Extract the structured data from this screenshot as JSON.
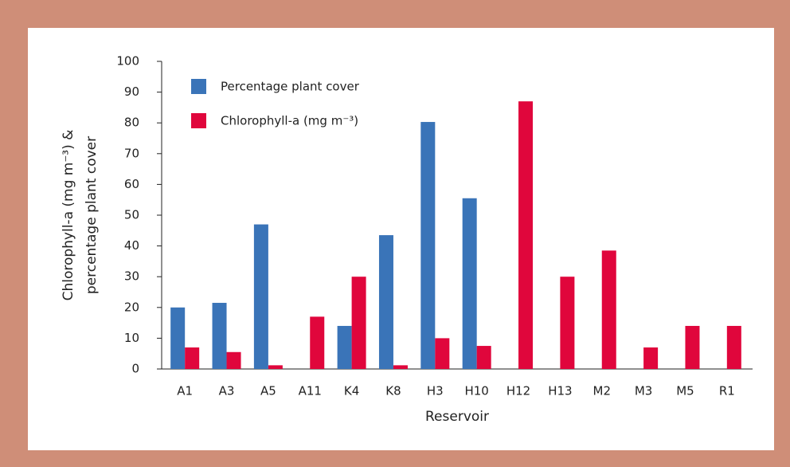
{
  "chart_data": {
    "type": "bar",
    "xlabel": "Reservoir",
    "ylabel": [
      "Chlorophyll-a (mg m⁻³) &",
      "percentage plant cover"
    ],
    "categories": [
      "A1",
      "A3",
      "A5",
      "A11",
      "K4",
      "K8",
      "H3",
      "H10",
      "H12",
      "H13",
      "M2",
      "M3",
      "M5",
      "R1"
    ],
    "series": [
      {
        "name": "Percentage plant cover",
        "color": "#3a74b8",
        "values": [
          20,
          21.5,
          47,
          null,
          14,
          43.5,
          80.3,
          55.5,
          null,
          null,
          null,
          null,
          null,
          null
        ]
      },
      {
        "name": "Chlorophyll-a (mg m⁻³)",
        "color": "#e0063c",
        "values": [
          7,
          5.5,
          1.2,
          17,
          30,
          1.2,
          10,
          7.5,
          87,
          30,
          38.5,
          7,
          14,
          14
        ]
      }
    ],
    "ylim": [
      0,
      100
    ],
    "yticks": [
      0,
      10,
      20,
      30,
      40,
      50,
      60,
      70,
      80,
      90,
      100
    ],
    "legend": "upper left"
  }
}
